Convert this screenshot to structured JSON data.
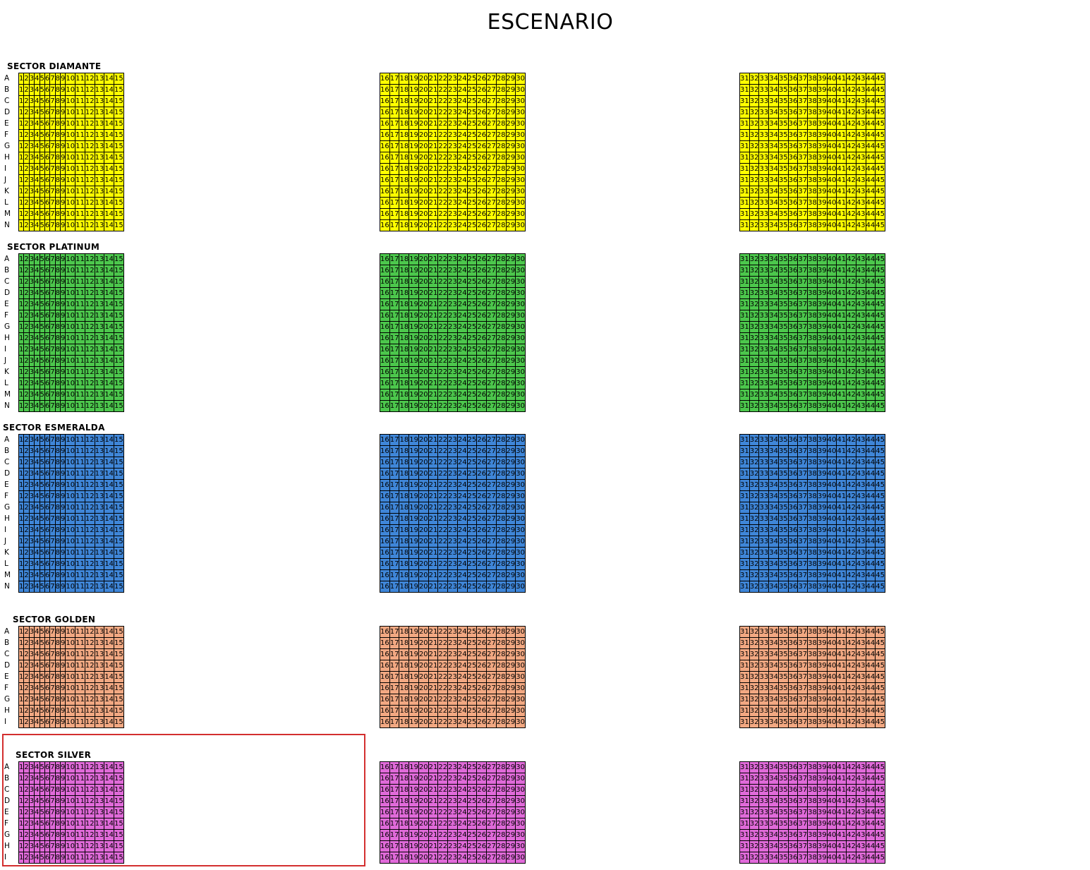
{
  "stage_title": "ESCENARIO",
  "colors": {
    "diamante": "#ffff00",
    "platinum": "#4cc74c",
    "esmeralda": "#3f86d8",
    "golden": "#f2a882",
    "silver": "#e06ad9",
    "highlight": "#d32f2f"
  },
  "sectors": [
    {
      "name": "SECTOR DIAMANTE",
      "color": "#ffff00",
      "rows": [
        "A",
        "B",
        "C",
        "D",
        "E",
        "F",
        "G",
        "H",
        "I",
        "J",
        "K",
        "L",
        "M",
        "N"
      ]
    },
    {
      "name": "SECTOR PLATINUM",
      "color": "#4cc74c",
      "rows": [
        "A",
        "B",
        "C",
        "D",
        "E",
        "F",
        "G",
        "H",
        "I",
        "J",
        "K",
        "L",
        "M",
        "N"
      ]
    },
    {
      "name": "SECTOR ESMERALDA",
      "color": "#3f86d8",
      "rows": [
        "A",
        "B",
        "C",
        "D",
        "E",
        "F",
        "G",
        "H",
        "I",
        "J",
        "K",
        "L",
        "M",
        "N"
      ]
    },
    {
      "name": "SECTOR GOLDEN",
      "color": "#f2a882",
      "rows": [
        "A",
        "B",
        "C",
        "D",
        "E",
        "F",
        "G",
        "H",
        "I"
      ]
    },
    {
      "name": "SECTOR SILVER",
      "color": "#e06ad9",
      "rows": [
        "A",
        "B",
        "C",
        "D",
        "E",
        "F",
        "G",
        "H",
        "I"
      ]
    }
  ],
  "seat_blocks": [
    {
      "from": 1,
      "to": 15
    },
    {
      "from": 16,
      "to": 30
    },
    {
      "from": 31,
      "to": 45
    }
  ]
}
